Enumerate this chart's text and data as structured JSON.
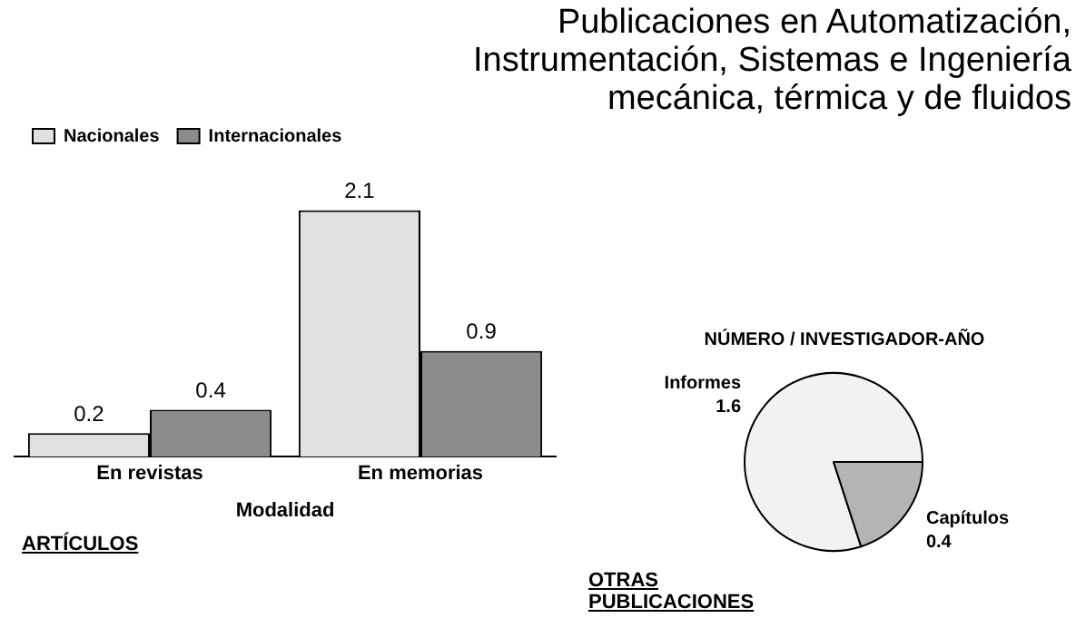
{
  "chart_data": [
    {
      "type": "bar",
      "title": "Publicaciones en Automatización, Instrumentación, Sistemas e Ingeniería mecánica, térmica y de fluidos",
      "xlabel": "Modalidad",
      "categories": [
        "En revistas",
        "En memorias"
      ],
      "series": [
        {
          "name": "Nacionales",
          "color": "#e0e0e0",
          "values": [
            0.2,
            2.1
          ]
        },
        {
          "name": "Internacionales",
          "color": "#8c8c8c",
          "values": [
            0.4,
            0.9
          ]
        }
      ],
      "data_labels": true,
      "legend": "top left",
      "tick_labels": "x",
      "grid": false,
      "annotations": [
        "ARTÍCULOS"
      ]
    },
    {
      "type": "pie",
      "title": "NÚMERO / INVESTIGADOR-AÑO",
      "categories": [
        "Informes",
        "Capítulos"
      ],
      "values": [
        1.6,
        0.4
      ],
      "colors": [
        "#f2f2f2",
        "#b4b4b4"
      ],
      "data_labels": true,
      "legend": false,
      "annotations": [
        "OTRAS PUBLICACIONES"
      ]
    }
  ]
}
